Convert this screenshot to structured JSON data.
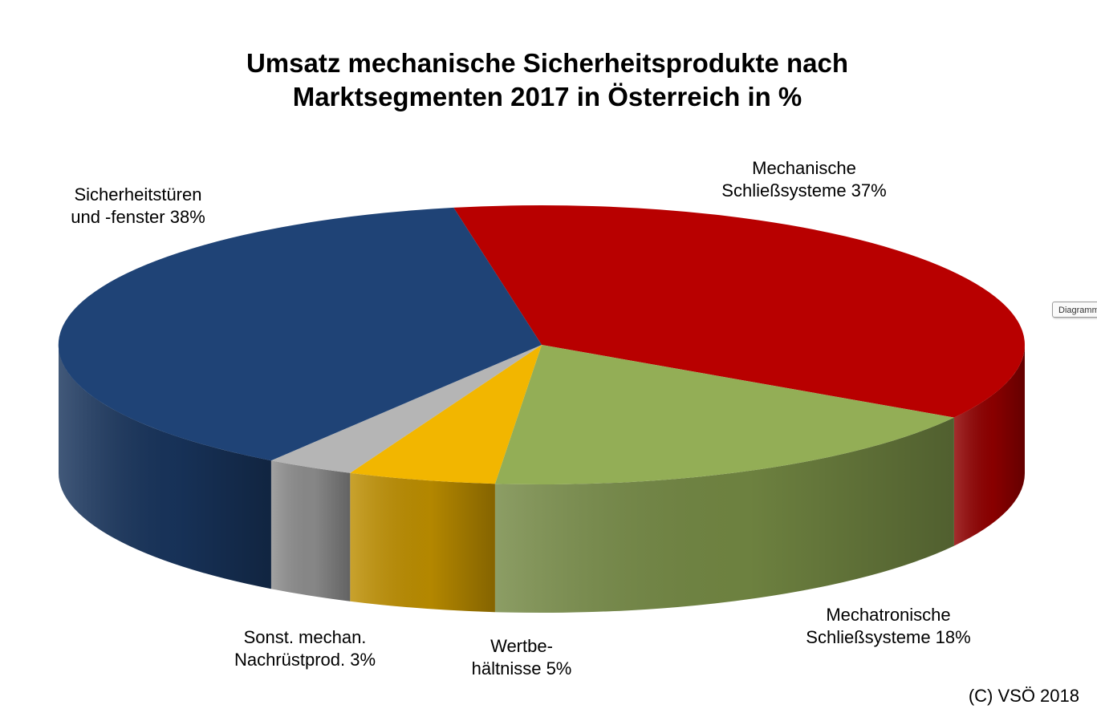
{
  "chart_data": {
    "type": "pie",
    "title_lines": [
      "Umsatz mechanische Sicherheitsprodukte nach",
      "Marktsegmenten 2017 in Österreich in %"
    ],
    "slices": [
      {
        "label_lines": [
          "Mechanische",
          "Schließsysteme 37%"
        ],
        "value": 37,
        "color": "#B80000"
      },
      {
        "label_lines": [
          "Mechatronische",
          "Schließsysteme 18%"
        ],
        "value": 18,
        "color": "#93AE56"
      },
      {
        "label_lines": [
          "Wertbe-",
          "hältnisse 5%"
        ],
        "value": 5,
        "color": "#F2B600"
      },
      {
        "label_lines": [
          "Sonst. mechan.",
          "Nachrüstprod. 3%"
        ],
        "value": 3,
        "color": "#B5B5B5"
      },
      {
        "label_lines": [
          "Sicherheitstüren",
          "und -fenster 38%"
        ],
        "value": 38,
        "color": "#1F4376"
      }
    ],
    "style": "3D"
  },
  "copyright": "(C) VSÖ 2018",
  "side_tab": "Diagramm"
}
